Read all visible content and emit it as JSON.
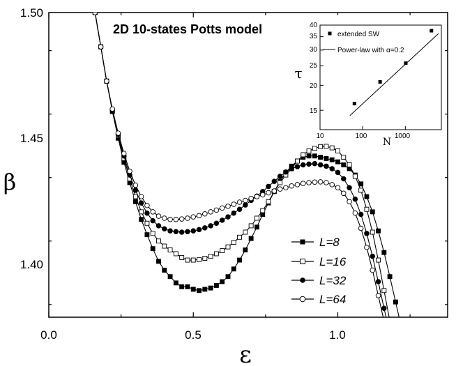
{
  "chart_data": {
    "type": "scatter",
    "title": "2D 10-states Potts model",
    "xlabel": "ε",
    "ylabel": "β",
    "xlim": [
      0.0,
      1.38
    ],
    "ylim": [
      1.38,
      1.5
    ],
    "xticks": [
      "0.0",
      "0.5",
      "1.0"
    ],
    "yticks": [
      "1.40",
      "1.45",
      "1.50"
    ],
    "legend_position": "bottom-right",
    "series": [
      {
        "name": "L=8",
        "marker": "filled-square",
        "x": [
          0.16,
          0.18,
          0.2,
          0.22,
          0.24,
          0.26,
          0.28,
          0.3,
          0.32,
          0.34,
          0.36,
          0.38,
          0.4,
          0.42,
          0.44,
          0.46,
          0.48,
          0.5,
          0.52,
          0.54,
          0.56,
          0.58,
          0.6,
          0.62,
          0.64,
          0.66,
          0.68,
          0.7,
          0.72,
          0.74,
          0.76,
          0.78,
          0.8,
          0.82,
          0.84,
          0.86,
          0.88,
          0.9,
          0.92,
          0.94,
          0.96,
          0.98,
          1.0,
          1.02,
          1.04,
          1.06,
          1.08,
          1.1,
          1.12,
          1.14,
          1.16,
          1.18,
          1.2,
          1.22
        ],
        "y": [
          1.5,
          1.4865,
          1.473,
          1.461,
          1.4505,
          1.441,
          1.433,
          1.4255,
          1.4185,
          1.4125,
          1.407,
          1.402,
          1.3985,
          1.396,
          1.3935,
          1.392,
          1.392,
          1.391,
          1.3905,
          1.391,
          1.3915,
          1.3925,
          1.394,
          1.396,
          1.399,
          1.4025,
          1.4065,
          1.411,
          1.4155,
          1.4205,
          1.425,
          1.4295,
          1.4335,
          1.437,
          1.4395,
          1.4415,
          1.443,
          1.4435,
          1.4435,
          1.443,
          1.4425,
          1.442,
          1.4412,
          1.44,
          1.4385,
          1.436,
          1.4325,
          1.4275,
          1.4215,
          1.414,
          1.4055,
          1.396,
          1.386,
          1.376
        ]
      },
      {
        "name": "L=16",
        "marker": "open-square",
        "x": [
          0.16,
          0.18,
          0.2,
          0.22,
          0.24,
          0.26,
          0.28,
          0.3,
          0.32,
          0.34,
          0.36,
          0.38,
          0.4,
          0.42,
          0.44,
          0.46,
          0.48,
          0.5,
          0.52,
          0.54,
          0.56,
          0.58,
          0.6,
          0.62,
          0.64,
          0.66,
          0.68,
          0.7,
          0.72,
          0.74,
          0.76,
          0.78,
          0.8,
          0.82,
          0.84,
          0.86,
          0.88,
          0.9,
          0.92,
          0.94,
          0.96,
          0.98,
          1.0,
          1.02,
          1.04,
          1.06,
          1.08,
          1.1,
          1.12,
          1.14,
          1.16,
          1.18,
          1.2
        ],
        "y": [
          1.5,
          1.4865,
          1.473,
          1.4615,
          1.4515,
          1.4425,
          1.4345,
          1.4275,
          1.4215,
          1.417,
          1.413,
          1.41,
          1.408,
          1.4065,
          1.405,
          1.4035,
          1.4025,
          1.4025,
          1.4027,
          1.4032,
          1.404,
          1.405,
          1.4062,
          1.4077,
          1.4095,
          1.4115,
          1.4135,
          1.416,
          1.419,
          1.422,
          1.4255,
          1.4295,
          1.433,
          1.436,
          1.4385,
          1.4415,
          1.444,
          1.4455,
          1.4465,
          1.4472,
          1.4473,
          1.4467,
          1.4455,
          1.443,
          1.44,
          1.4355,
          1.43,
          1.4225,
          1.4135,
          1.4025,
          1.3905,
          1.3785,
          1.368
        ]
      },
      {
        "name": "L=32",
        "marker": "filled-circle",
        "x": [
          0.16,
          0.18,
          0.2,
          0.22,
          0.24,
          0.26,
          0.28,
          0.3,
          0.32,
          0.34,
          0.36,
          0.38,
          0.4,
          0.42,
          0.44,
          0.46,
          0.48,
          0.5,
          0.52,
          0.54,
          0.56,
          0.58,
          0.6,
          0.62,
          0.64,
          0.66,
          0.68,
          0.7,
          0.72,
          0.74,
          0.76,
          0.78,
          0.8,
          0.82,
          0.84,
          0.86,
          0.88,
          0.9,
          0.92,
          0.94,
          0.96,
          0.98,
          1.0,
          1.02,
          1.04,
          1.06,
          1.08,
          1.1,
          1.12,
          1.14,
          1.16,
          1.18,
          1.2
        ],
        "y": [
          1.5,
          1.4865,
          1.473,
          1.4615,
          1.452,
          1.4435,
          1.436,
          1.43,
          1.425,
          1.421,
          1.418,
          1.416,
          1.4148,
          1.414,
          1.4137,
          1.4135,
          1.4137,
          1.414,
          1.4145,
          1.4152,
          1.416,
          1.417,
          1.4182,
          1.4195,
          1.421,
          1.4225,
          1.4242,
          1.426,
          1.4277,
          1.4295,
          1.4315,
          1.4335,
          1.4355,
          1.4372,
          1.4385,
          1.4393,
          1.44,
          1.4403,
          1.4405,
          1.44,
          1.4395,
          1.4385,
          1.437,
          1.4345,
          1.431,
          1.4265,
          1.4205,
          1.413,
          1.404,
          1.394,
          1.3835,
          1.3735,
          1.365
        ]
      },
      {
        "name": "L=64",
        "marker": "open-circle",
        "x": [
          0.16,
          0.18,
          0.2,
          0.22,
          0.24,
          0.26,
          0.28,
          0.3,
          0.32,
          0.34,
          0.36,
          0.38,
          0.4,
          0.42,
          0.44,
          0.46,
          0.48,
          0.5,
          0.52,
          0.54,
          0.56,
          0.58,
          0.6,
          0.62,
          0.64,
          0.66,
          0.68,
          0.7,
          0.72,
          0.74,
          0.76,
          0.78,
          0.8,
          0.82,
          0.84,
          0.86,
          0.88,
          0.9,
          0.92,
          0.94,
          0.96,
          0.98,
          1.0,
          1.02,
          1.04,
          1.06,
          1.08,
          1.1,
          1.12,
          1.14,
          1.16,
          1.18,
          1.2
        ],
        "y": [
          1.5,
          1.4865,
          1.473,
          1.462,
          1.4525,
          1.4445,
          1.4375,
          1.432,
          1.4275,
          1.424,
          1.4215,
          1.4198,
          1.419,
          1.4185,
          1.4185,
          1.4187,
          1.419,
          1.4195,
          1.42,
          1.4207,
          1.4215,
          1.4222,
          1.423,
          1.4237,
          1.4245,
          1.4253,
          1.426,
          1.4268,
          1.4275,
          1.4282,
          1.429,
          1.4297,
          1.4305,
          1.431,
          1.4317,
          1.4322,
          1.4327,
          1.433,
          1.4332,
          1.4333,
          1.433,
          1.4322,
          1.431,
          1.4288,
          1.4255,
          1.421,
          1.415,
          1.4075,
          1.3985,
          1.3885,
          1.3785,
          1.3695,
          1.362
        ]
      }
    ],
    "inset": {
      "type": "scatter",
      "xscale": "log",
      "yscale": "log",
      "xlabel": "N",
      "ylabel": "τ",
      "xlim": [
        10,
        7000
      ],
      "ylim": [
        12,
        40
      ],
      "xticks": [
        "10",
        "100",
        "1000"
      ],
      "yticks": [
        "15",
        "20",
        "25",
        "30",
        "35",
        "40"
      ],
      "series": [
        {
          "name": "extended SW",
          "marker": "filled-square",
          "x": [
            64,
            256,
            1024,
            4096
          ],
          "y": [
            16.2,
            20.8,
            25.8,
            37.5
          ]
        },
        {
          "name": "Power-law with α=0.2",
          "marker": "line",
          "x": [
            50,
            6000
          ],
          "y": [
            14.1,
            36.3
          ]
        }
      ]
    }
  }
}
